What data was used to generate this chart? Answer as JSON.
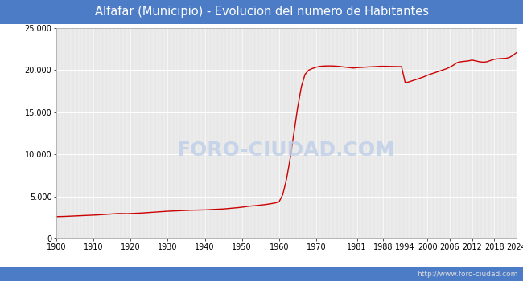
{
  "title": "Alfafar (Municipio) - Evolucion del numero de Habitantes",
  "title_bg_color": "#4d7cc7",
  "title_text_color": "#ffffff",
  "plot_bg_color": "#e8e8e8",
  "outer_bg_color": "#ffffff",
  "line_color": "#cc0000",
  "grid_color": "#ffffff",
  "footer_text": "http://www.foro-ciudad.com",
  "footer_color": "#555555",
  "watermark_text": "FORO-CIUDAD.COM",
  "watermark_color": "#c0d0e8",
  "ylim": [
    0,
    25000
  ],
  "yticks": [
    0,
    5000,
    10000,
    15000,
    20000,
    25000
  ],
  "ytick_labels": [
    "0",
    "5.000",
    "10.000",
    "15.000",
    "20.000",
    "25.000"
  ],
  "xticks": [
    1900,
    1910,
    1920,
    1930,
    1940,
    1950,
    1960,
    1970,
    1981,
    1988,
    1994,
    2000,
    2006,
    2012,
    2018,
    2024
  ],
  "years": [
    1900,
    1901,
    1902,
    1903,
    1904,
    1905,
    1906,
    1907,
    1908,
    1909,
    1910,
    1911,
    1912,
    1913,
    1914,
    1915,
    1916,
    1917,
    1918,
    1919,
    1920,
    1921,
    1922,
    1923,
    1924,
    1925,
    1926,
    1927,
    1928,
    1929,
    1930,
    1931,
    1932,
    1933,
    1934,
    1935,
    1936,
    1937,
    1938,
    1939,
    1940,
    1941,
    1942,
    1943,
    1944,
    1945,
    1946,
    1947,
    1948,
    1949,
    1950,
    1951,
    1952,
    1953,
    1954,
    1955,
    1956,
    1957,
    1958,
    1959,
    1960,
    1961,
    1962,
    1963,
    1964,
    1965,
    1966,
    1967,
    1968,
    1969,
    1970,
    1971,
    1972,
    1973,
    1974,
    1975,
    1976,
    1977,
    1978,
    1979,
    1980,
    1981,
    1982,
    1983,
    1984,
    1985,
    1986,
    1987,
    1988,
    1989,
    1990,
    1991,
    1992,
    1993,
    1994,
    1995,
    1996,
    1997,
    1998,
    1999,
    2000,
    2001,
    2002,
    2003,
    2004,
    2005,
    2006,
    2007,
    2008,
    2009,
    2010,
    2011,
    2012,
    2013,
    2014,
    2015,
    2016,
    2017,
    2018,
    2019,
    2020,
    2021,
    2022,
    2023,
    2024
  ],
  "population": [
    2600,
    2610,
    2620,
    2640,
    2660,
    2680,
    2700,
    2720,
    2740,
    2760,
    2780,
    2800,
    2830,
    2860,
    2890,
    2920,
    2950,
    2970,
    2960,
    2950,
    2970,
    2990,
    3010,
    3030,
    3060,
    3090,
    3120,
    3150,
    3180,
    3210,
    3240,
    3260,
    3280,
    3300,
    3320,
    3340,
    3360,
    3370,
    3380,
    3390,
    3400,
    3420,
    3450,
    3470,
    3490,
    3510,
    3550,
    3590,
    3630,
    3670,
    3720,
    3780,
    3840,
    3880,
    3920,
    3970,
    4020,
    4080,
    4150,
    4230,
    4350,
    5200,
    7000,
    9500,
    12500,
    15500,
    18000,
    19500,
    20000,
    20200,
    20350,
    20450,
    20480,
    20500,
    20500,
    20480,
    20450,
    20400,
    20350,
    20300,
    20250,
    20300,
    20320,
    20350,
    20380,
    20400,
    20420,
    20450,
    20460,
    20450,
    20440,
    20430,
    20420,
    20420,
    18500,
    18600,
    18750,
    18900,
    19050,
    19200,
    19400,
    19550,
    19700,
    19850,
    20000,
    20150,
    20350,
    20600,
    20900,
    21000,
    21050,
    21100,
    21200,
    21100,
    21000,
    20950,
    21000,
    21150,
    21300,
    21350,
    21380,
    21400,
    21500,
    21750,
    22100
  ]
}
